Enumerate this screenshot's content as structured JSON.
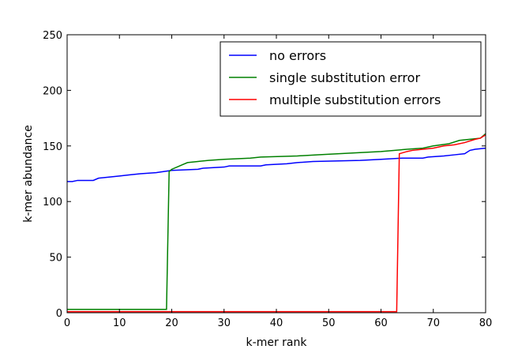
{
  "chart_data": {
    "type": "line",
    "title": "",
    "xlabel": "k-mer rank",
    "ylabel": "k-mer abundance",
    "xlim": [
      0,
      80
    ],
    "ylim": [
      0,
      250
    ],
    "xticks": [
      0,
      10,
      20,
      30,
      40,
      50,
      60,
      70,
      80
    ],
    "yticks": [
      0,
      50,
      100,
      150,
      200,
      250
    ],
    "grid": false,
    "legend_position": "top-right",
    "series": [
      {
        "name": "no errors",
        "color": "#0000ff",
        "points": [
          [
            0,
            118
          ],
          [
            1,
            118
          ],
          [
            2,
            119
          ],
          [
            5,
            119
          ],
          [
            6,
            121
          ],
          [
            8,
            122
          ],
          [
            10,
            123
          ],
          [
            12,
            124
          ],
          [
            14,
            125
          ],
          [
            17,
            126
          ],
          [
            20,
            128
          ],
          [
            25,
            129
          ],
          [
            26,
            130
          ],
          [
            30,
            131
          ],
          [
            31,
            132
          ],
          [
            37,
            132
          ],
          [
            38,
            133
          ],
          [
            42,
            134
          ],
          [
            44,
            135
          ],
          [
            47,
            136
          ],
          [
            56,
            137
          ],
          [
            60,
            138
          ],
          [
            64,
            139
          ],
          [
            68,
            139
          ],
          [
            69,
            140
          ],
          [
            72,
            141
          ],
          [
            74,
            142
          ],
          [
            76,
            143
          ],
          [
            77,
            146
          ],
          [
            78,
            147
          ],
          [
            80,
            148
          ]
        ]
      },
      {
        "name": "single substitution error",
        "color": "#008000",
        "points": [
          [
            0,
            3
          ],
          [
            19,
            3
          ],
          [
            19.5,
            127
          ],
          [
            20,
            129
          ],
          [
            21,
            131
          ],
          [
            22,
            133
          ],
          [
            23,
            135
          ],
          [
            25,
            136
          ],
          [
            27,
            137
          ],
          [
            30,
            138
          ],
          [
            35,
            139
          ],
          [
            37,
            140
          ],
          [
            44,
            141
          ],
          [
            48,
            142
          ],
          [
            52,
            143
          ],
          [
            56,
            144
          ],
          [
            60,
            145
          ],
          [
            65,
            147
          ],
          [
            68,
            148
          ],
          [
            70,
            150
          ],
          [
            73,
            152
          ],
          [
            75,
            155
          ],
          [
            77,
            156
          ],
          [
            79,
            157
          ],
          [
            80,
            161
          ]
        ]
      },
      {
        "name": "multiple substitution errors",
        "color": "#ff0000",
        "points": [
          [
            0,
            1
          ],
          [
            63,
            1
          ],
          [
            63.5,
            143
          ],
          [
            65,
            145
          ],
          [
            66,
            146
          ],
          [
            68,
            147
          ],
          [
            70,
            148
          ],
          [
            72,
            150
          ],
          [
            74,
            151
          ],
          [
            76,
            153
          ],
          [
            78,
            156
          ],
          [
            79,
            157
          ],
          [
            80,
            160
          ]
        ]
      }
    ]
  }
}
